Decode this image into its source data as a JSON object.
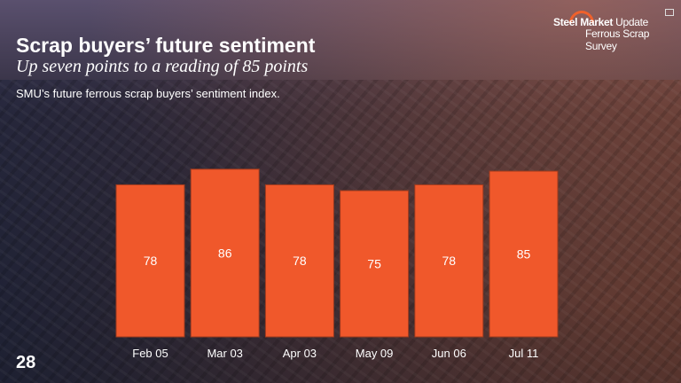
{
  "header": {
    "title": "Scrap buyers’ future sentiment",
    "subtitle": "Up seven points to a reading of 85 points",
    "description": "SMU’s future ferrous scrap buyers’ sentiment index."
  },
  "logo": {
    "line1_bold": "Steel Market",
    "line1_light": "Update",
    "line2": "Ferrous Scrap Survey"
  },
  "page_number": "28",
  "colors": {
    "bar": "#f0582b",
    "bar_border": "#9c3a1e",
    "text": "#ffffff"
  },
  "chart_data": {
    "type": "bar",
    "categories": [
      "Feb 05",
      "Mar 03",
      "Apr 03",
      "May 09",
      "Jun 06",
      "Jul 11"
    ],
    "values": [
      78,
      86,
      78,
      75,
      78,
      85
    ],
    "title": "",
    "xlabel": "",
    "ylabel": "",
    "ylim": [
      0,
      100
    ],
    "grid": false,
    "data_labels": true
  }
}
